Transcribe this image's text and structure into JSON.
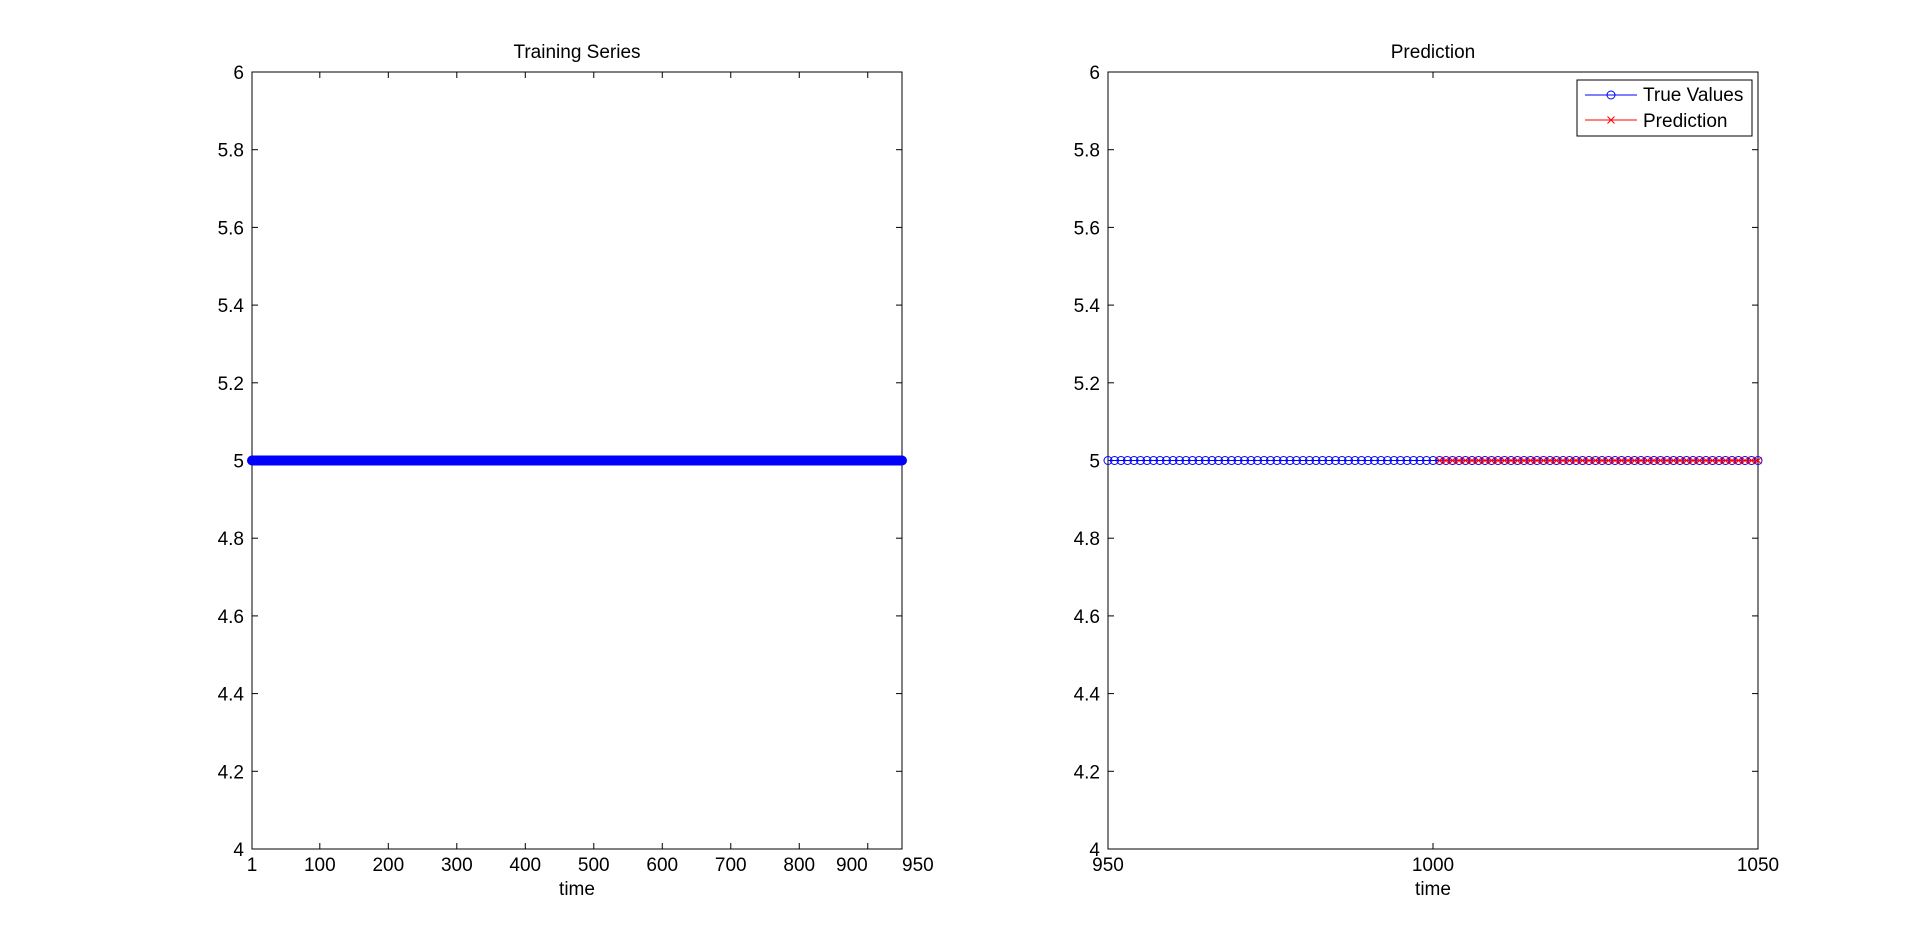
{
  "chart_data": [
    {
      "type": "line",
      "title": "Training Series",
      "xlabel": "time",
      "ylabel": "",
      "xlim": [
        1,
        950
      ],
      "ylim": [
        4,
        6
      ],
      "xticks": [
        1,
        100,
        200,
        300,
        400,
        500,
        600,
        700,
        800,
        900,
        950
      ],
      "yticks": [
        4,
        4.2,
        4.4,
        4.6,
        4.8,
        5,
        5.2,
        5.4,
        5.6,
        5.8,
        6
      ],
      "grid": false,
      "series": [
        {
          "marker": "filled-circle",
          "color": "#0000ff",
          "x_start": 1,
          "x_end": 950,
          "value": 5
        }
      ]
    },
    {
      "type": "line",
      "title": "Prediction",
      "xlabel": "time",
      "ylabel": "",
      "xlim": [
        950,
        1050
      ],
      "ylim": [
        4,
        6
      ],
      "xticks": [
        950,
        1000,
        1050
      ],
      "yticks": [
        4,
        4.2,
        4.4,
        4.6,
        4.8,
        5,
        5.2,
        5.4,
        5.6,
        5.8,
        6
      ],
      "grid": false,
      "legend": "top-right",
      "series": [
        {
          "name": "True Values",
          "marker": "circle",
          "color": "#0000ff",
          "x_start": 950,
          "x_end": 1050,
          "value": 5
        },
        {
          "name": "Prediction",
          "marker": "x",
          "color": "#ff0000",
          "x_start": 1001,
          "x_end": 1050,
          "value": 5
        }
      ]
    }
  ]
}
